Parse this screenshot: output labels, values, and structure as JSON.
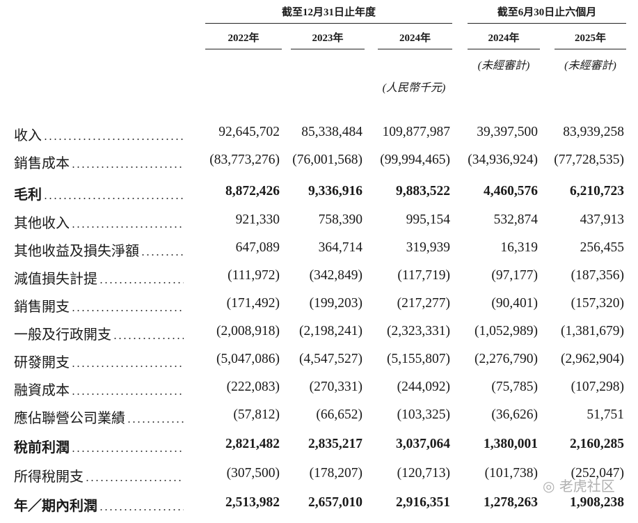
{
  "header": {
    "group_labels": [
      "截至12月31日止年度",
      "截至6月30日止六個月"
    ],
    "years": [
      "2022年",
      "2023年",
      "2024年",
      "2024年",
      "2025年"
    ],
    "unaudited": [
      "(未經審計)",
      "(未經審計)"
    ],
    "currency": "(人民幣千元)"
  },
  "table": {
    "rows": [
      [
        "收入",
        "92,645,702",
        "85,338,484",
        "109,877,987",
        "39,397,500",
        "83,939,258"
      ],
      [
        "銷售成本",
        "(83,773,276)",
        "(76,001,568)",
        "(99,994,465)",
        "(34,936,924)",
        "(77,728,535)"
      ],
      [
        "毛利",
        "8,872,426",
        "9,336,916",
        "9,883,522",
        "4,460,576",
        "6,210,723"
      ],
      [
        "其他收入",
        "921,330",
        "758,390",
        "995,154",
        "532,874",
        "437,913"
      ],
      [
        "其他收益及損失淨額",
        "647,089",
        "364,714",
        "319,939",
        "16,319",
        "256,455"
      ],
      [
        "減值損失計提",
        "(111,972)",
        "(342,849)",
        "(117,719)",
        "(97,177)",
        "(187,356)"
      ],
      [
        "銷售開支",
        "(171,492)",
        "(199,203)",
        "(217,277)",
        "(90,401)",
        "(157,320)"
      ],
      [
        "一般及行政開支",
        "(2,008,918)",
        "(2,198,241)",
        "(2,323,331)",
        "(1,052,989)",
        "(1,381,679)"
      ],
      [
        "研發開支",
        "(5,047,086)",
        "(4,547,527)",
        "(5,155,807)",
        "(2,276,790)",
        "(2,962,904)"
      ],
      [
        "融資成本",
        "(222,083)",
        "(270,331)",
        "(244,092)",
        "(75,785)",
        "(107,298)"
      ],
      [
        "應佔聯營公司業績",
        "(57,812)",
        "(66,652)",
        "(103,325)",
        "(36,626)",
        "51,751"
      ],
      [
        "稅前利潤",
        "2,821,482",
        "2,835,217",
        "3,037,064",
        "1,380,001",
        "2,160,285"
      ],
      [
        "所得稅開支",
        "(307,500)",
        "(178,207)",
        "(120,713)",
        "(101,738)",
        "(252,047)"
      ],
      [
        "年／期內利潤",
        "2,513,982",
        "2,657,010",
        "2,916,351",
        "1,278,263",
        "1,908,238"
      ]
    ]
  },
  "watermark": "老虎社区"
}
